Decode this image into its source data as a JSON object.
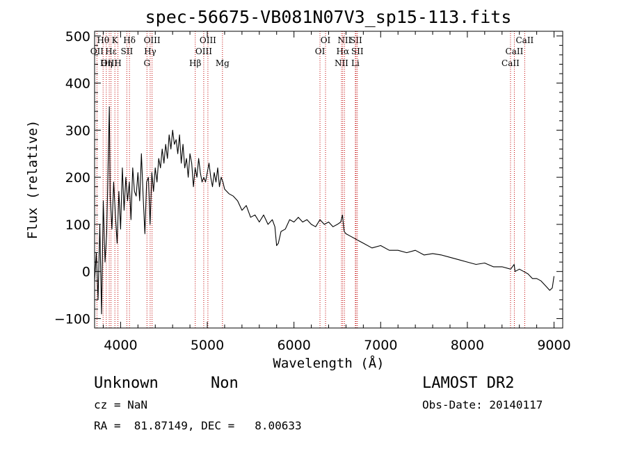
{
  "chart_data": {
    "type": "line",
    "title": "spec-56675-VB081N07V3_sp15-113.fits",
    "xlabel": "Wavelength (Å)",
    "ylabel": "Flux (relative)",
    "xlim": [
      3700,
      9100
    ],
    "ylim": [
      -120,
      510
    ],
    "xticks": [
      4000,
      5000,
      6000,
      7000,
      8000,
      9000
    ],
    "yticks": [
      -100,
      0,
      100,
      200,
      300,
      400,
      500
    ],
    "grid": false,
    "series": [
      {
        "x": [
          3700,
          3720,
          3740,
          3760,
          3780,
          3800,
          3820,
          3840,
          3860,
          3870,
          3880,
          3900,
          3920,
          3940,
          3960,
          3980,
          4000,
          4020,
          4040,
          4060,
          4080,
          4100,
          4120,
          4140,
          4160,
          4180,
          4200,
          4220,
          4240,
          4260,
          4280,
          4300,
          4320,
          4340,
          4360,
          4380,
          4400,
          4420,
          4440,
          4460,
          4480,
          4500,
          4520,
          4540,
          4560,
          4580,
          4600,
          4620,
          4640,
          4660,
          4680,
          4700,
          4720,
          4740,
          4760,
          4780,
          4800,
          4820,
          4840,
          4860,
          4880,
          4900,
          4920,
          4940,
          4960,
          4980,
          5000,
          5020,
          5040,
          5060,
          5080,
          5100,
          5120,
          5140,
          5160,
          5180,
          5200,
          5250,
          5300,
          5350,
          5400,
          5450,
          5500,
          5550,
          5600,
          5650,
          5700,
          5750,
          5780,
          5800,
          5820,
          5850,
          5900,
          5950,
          6000,
          6050,
          6100,
          6150,
          6200,
          6250,
          6300,
          6350,
          6400,
          6450,
          6500,
          6540,
          6560,
          6570,
          6580,
          6600,
          6650,
          6700,
          6750,
          6800,
          6900,
          7000,
          7100,
          7200,
          7300,
          7400,
          7500,
          7600,
          7700,
          7800,
          7900,
          8000,
          8100,
          8200,
          8300,
          8400,
          8500,
          8540,
          8550,
          8600,
          8650,
          8700,
          8750,
          8800,
          8850,
          8900,
          8950,
          8980,
          9000
        ],
        "y": [
          -20,
          40,
          -60,
          100,
          -90,
          150,
          20,
          80,
          260,
          350,
          160,
          90,
          190,
          120,
          60,
          170,
          90,
          220,
          130,
          200,
          150,
          190,
          110,
          220,
          170,
          160,
          210,
          150,
          250,
          160,
          80,
          190,
          200,
          100,
          210,
          170,
          220,
          190,
          240,
          220,
          260,
          230,
          270,
          240,
          290,
          260,
          300,
          270,
          280,
          250,
          290,
          230,
          270,
          220,
          240,
          200,
          250,
          230,
          180,
          220,
          200,
          240,
          210,
          190,
          200,
          190,
          210,
          230,
          200,
          180,
          210,
          190,
          220,
          180,
          200,
          190,
          175,
          165,
          160,
          150,
          130,
          140,
          115,
          120,
          105,
          120,
          100,
          110,
          95,
          55,
          60,
          85,
          90,
          110,
          105,
          115,
          105,
          110,
          100,
          95,
          110,
          100,
          105,
          95,
          100,
          105,
          120,
          100,
          85,
          80,
          75,
          70,
          65,
          60,
          50,
          55,
          45,
          45,
          40,
          45,
          35,
          38,
          35,
          30,
          25,
          20,
          15,
          18,
          10,
          10,
          5,
          15,
          0,
          5,
          0,
          -5,
          -15,
          -15,
          -20,
          -30,
          -40,
          -35,
          -10
        ]
      }
    ],
    "line_markers": [
      {
        "label": "Hθ",
        "x": 3798,
        "row": 0
      },
      {
        "label": "OII",
        "x": 3727,
        "row": 1
      },
      {
        "label": "OIII",
        "x": 3869,
        "row": 2
      },
      {
        "label": "Hε",
        "x": 3889,
        "row": 1
      },
      {
        "label": "K",
        "x": 3934,
        "row": 0
      },
      {
        "label": "Hη",
        "x": 3835,
        "row": 2
      },
      {
        "label": "H",
        "x": 3969,
        "row": 2
      },
      {
        "label": "SII",
        "x": 4072,
        "row": 1
      },
      {
        "label": "Hδ",
        "x": 4102,
        "row": 0
      },
      {
        "label": "OIII",
        "x": 4363,
        "row": 0
      },
      {
        "label": "Hγ",
        "x": 4341,
        "row": 1
      },
      {
        "label": "G",
        "x": 4304,
        "row": 2
      },
      {
        "label": "Hβ",
        "x": 4861,
        "row": 2
      },
      {
        "label": "OIII",
        "x": 5007,
        "row": 0
      },
      {
        "label": "OIII",
        "x": 4959,
        "row": 1
      },
      {
        "label": "Mg",
        "x": 5175,
        "row": 2
      },
      {
        "label": "OI",
        "x": 6364,
        "row": 0
      },
      {
        "label": "OI",
        "x": 6300,
        "row": 1
      },
      {
        "label": "NII",
        "x": 6583,
        "row": 0
      },
      {
        "label": "SII",
        "x": 6716,
        "row": 0
      },
      {
        "label": "Hα",
        "x": 6563,
        "row": 1
      },
      {
        "label": "SII",
        "x": 6731,
        "row": 1
      },
      {
        "label": "NII",
        "x": 6548,
        "row": 2
      },
      {
        "label": "Li",
        "x": 6708,
        "row": 2
      },
      {
        "label": "CaII",
        "x": 8662,
        "row": 0
      },
      {
        "label": "CaII",
        "x": 8542,
        "row": 1
      },
      {
        "label": "CaII",
        "x": 8498,
        "row": 2
      }
    ],
    "marker_color": "#c00000"
  },
  "footer": {
    "object_class": "Unknown",
    "subclass": "Non",
    "redshift": "cz = NaN",
    "coords": "RA =  81.87149, DEC =   8.00633",
    "survey": "LAMOST DR2",
    "obs_date": "Obs-Date: 20140117"
  }
}
